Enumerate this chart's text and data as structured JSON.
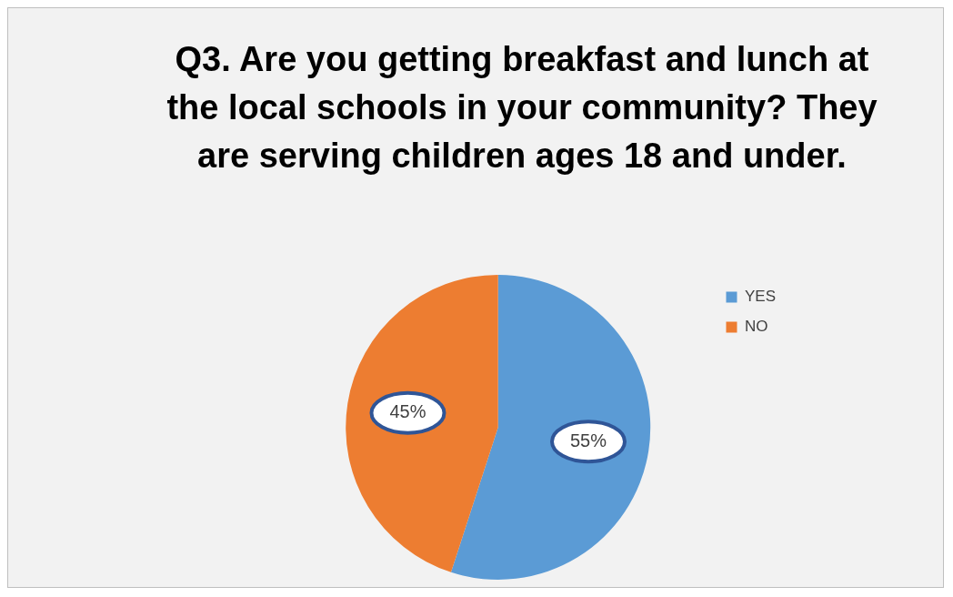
{
  "chart_data": {
    "type": "pie",
    "title": "Q3. Are you getting breakfast and lunch at the local schools in your community? They are serving children ages 18 and under.",
    "categories": [
      "YES",
      "NO"
    ],
    "values": [
      55,
      45
    ],
    "colors": [
      "#5b9bd5",
      "#ed7d31"
    ],
    "value_labels": [
      "55%",
      "45%"
    ],
    "legend": "right"
  }
}
